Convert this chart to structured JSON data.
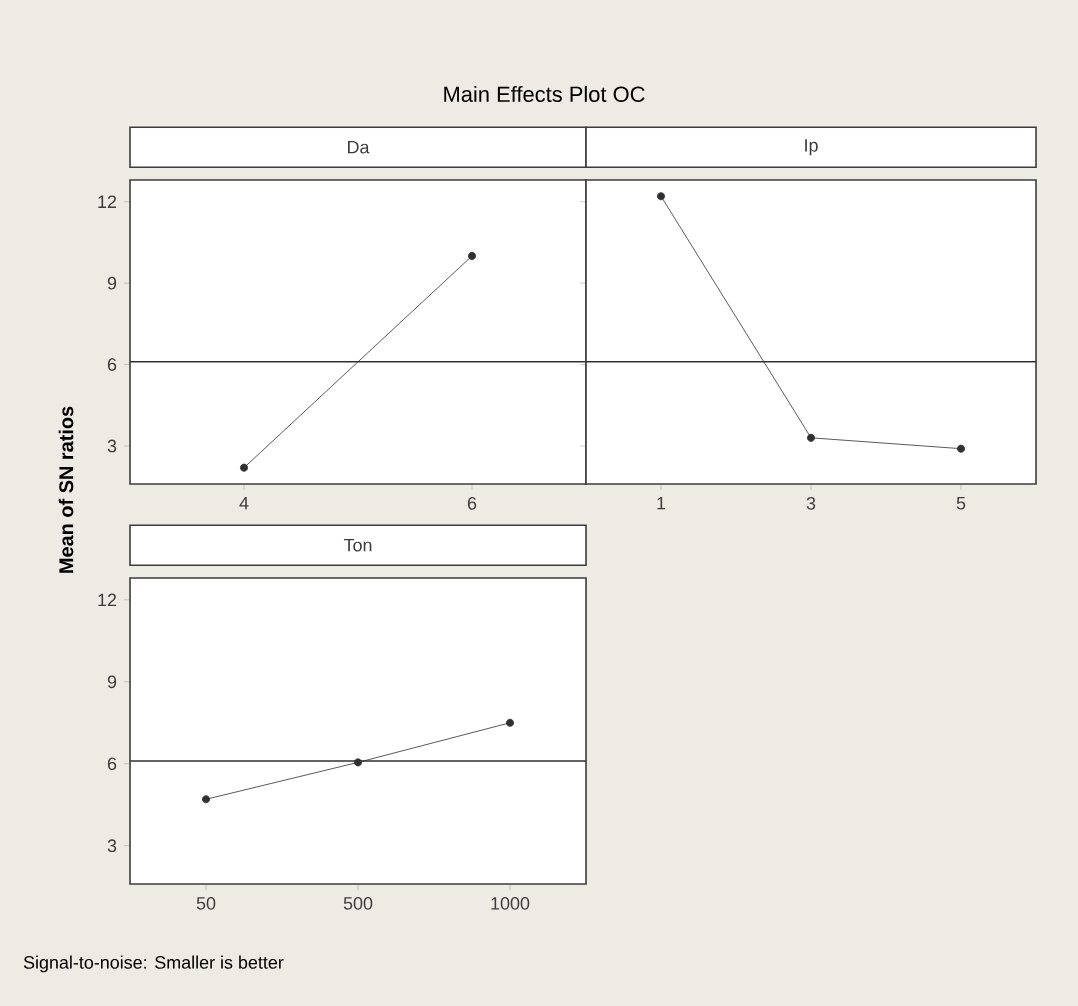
{
  "chart_data": [
    {
      "type": "line",
      "title": "Da",
      "ylabel": "Mean of SN ratios",
      "annotations": [
        "Main Effects Plot OC",
        "Signal-to-noise: Smaller is better"
      ],
      "categories": [
        "4",
        "6"
      ],
      "values": [
        2.2,
        10.0
      ],
      "color": "#303030",
      "marker": "circle",
      "ylim": [
        1.6,
        12.8
      ],
      "yticks": [
        3,
        6,
        9,
        12
      ],
      "ref_lines": [
        {
          "axis": "y",
          "value": 6.1,
          "color": "#303030"
        }
      ],
      "grid": false
    },
    {
      "type": "line",
      "title": "Ip",
      "categories": [
        "1",
        "3",
        "5"
      ],
      "values": [
        12.2,
        3.3,
        2.9
      ],
      "color": "#303030",
      "marker": "circle",
      "ylim": [
        1.6,
        12.8
      ],
      "yticks": [
        3,
        6,
        9,
        12
      ],
      "tick_labels": "x",
      "ref_lines": [
        {
          "axis": "y",
          "value": 6.1,
          "color": "#303030"
        }
      ],
      "grid": false
    },
    {
      "type": "line",
      "title": "Ton",
      "categories": [
        "50",
        "500",
        "1000"
      ],
      "values": [
        4.7,
        6.05,
        7.5
      ],
      "color": "#303030",
      "marker": "circle",
      "ylim": [
        1.6,
        12.8
      ],
      "yticks": [
        3,
        6,
        9,
        12
      ],
      "ref_lines": [
        {
          "axis": "y",
          "value": 6.1,
          "color": "#303030"
        }
      ],
      "grid": false
    }
  ]
}
